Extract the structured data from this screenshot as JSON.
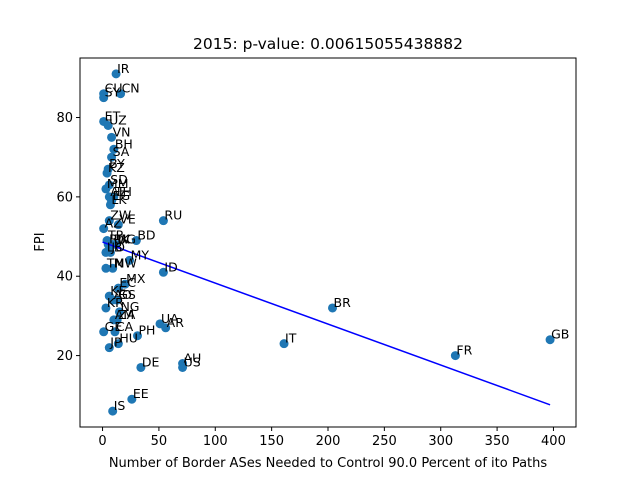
{
  "chart_data": {
    "type": "scatter",
    "title": "2015: p-value: 0.00615055438882",
    "xlabel": "Number of Border ASes Needed to Control 90.0 Percent of ito Paths",
    "ylabel": "FPI",
    "xlim": [
      -20,
      420
    ],
    "ylim": [
      2,
      95
    ],
    "xticks": [
      0,
      50,
      100,
      150,
      200,
      250,
      300,
      350,
      400
    ],
    "yticks": [
      20,
      40,
      60,
      80
    ],
    "grid": false,
    "point_color": "#1f77b4",
    "line_color": "#0000ff",
    "regression_line": {
      "x": [
        0,
        397
      ],
      "y": [
        48.6,
        7.6
      ]
    },
    "points": [
      {
        "label": "IR",
        "x": 12,
        "y": 91
      },
      {
        "label": "CU",
        "x": 1,
        "y": 86
      },
      {
        "label": "SY",
        "x": 1,
        "y": 85
      },
      {
        "label": "CN",
        "x": 16,
        "y": 86
      },
      {
        "label": "ET",
        "x": 1,
        "y": 79
      },
      {
        "label": "UZ",
        "x": 5,
        "y": 78
      },
      {
        "label": "VN",
        "x": 8,
        "y": 75
      },
      {
        "label": "BH",
        "x": 10,
        "y": 72
      },
      {
        "label": "SA",
        "x": 8,
        "y": 70
      },
      {
        "label": "BY",
        "x": 5,
        "y": 67
      },
      {
        "label": "KZ",
        "x": 4,
        "y": 66
      },
      {
        "label": "SD",
        "x": 6,
        "y": 63
      },
      {
        "label": "MM",
        "x": 3,
        "y": 62
      },
      {
        "label": "AE",
        "x": 6,
        "y": 60
      },
      {
        "label": "TH",
        "x": 10,
        "y": 60
      },
      {
        "label": "EG",
        "x": 8,
        "y": 59
      },
      {
        "label": "LK",
        "x": 7,
        "y": 58
      },
      {
        "label": "RU",
        "x": 54,
        "y": 54
      },
      {
        "label": "ZW",
        "x": 6,
        "y": 54
      },
      {
        "label": "VE",
        "x": 14,
        "y": 53
      },
      {
        "label": "AZ",
        "x": 1,
        "y": 52
      },
      {
        "label": "TR",
        "x": 4,
        "y": 49
      },
      {
        "label": "BD",
        "x": 30,
        "y": 49
      },
      {
        "label": "RW",
        "x": 5,
        "y": 48
      },
      {
        "label": "PK",
        "x": 9,
        "y": 48
      },
      {
        "label": "UG",
        "x": 12,
        "y": 48
      },
      {
        "label": "LB",
        "x": 3,
        "y": 46
      },
      {
        "label": "JO",
        "x": 7,
        "y": 46
      },
      {
        "label": "MY",
        "x": 24,
        "y": 44
      },
      {
        "label": "TN",
        "x": 3,
        "y": 42
      },
      {
        "label": "MW",
        "x": 9,
        "y": 42
      },
      {
        "label": "ID",
        "x": 54,
        "y": 41
      },
      {
        "label": "MX",
        "x": 20,
        "y": 38
      },
      {
        "label": "EC",
        "x": 14,
        "y": 37
      },
      {
        "label": "KE",
        "x": 6,
        "y": 35
      },
      {
        "label": "AO",
        "x": 9,
        "y": 34
      },
      {
        "label": "GS",
        "x": 13,
        "y": 34
      },
      {
        "label": "KR",
        "x": 3,
        "y": 32
      },
      {
        "label": "NG",
        "x": 15,
        "y": 31
      },
      {
        "label": "AM",
        "x": 10,
        "y": 29
      },
      {
        "label": "ZA",
        "x": 13,
        "y": 29
      },
      {
        "label": "UA",
        "x": 51,
        "y": 28
      },
      {
        "label": "AR",
        "x": 56,
        "y": 27
      },
      {
        "label": "GE",
        "x": 1,
        "y": 26
      },
      {
        "label": "CA",
        "x": 11,
        "y": 26
      },
      {
        "label": "PH",
        "x": 31,
        "y": 25
      },
      {
        "label": "JP",
        "x": 6,
        "y": 22
      },
      {
        "label": "HU",
        "x": 14,
        "y": 23
      },
      {
        "label": "IT",
        "x": 161,
        "y": 23
      },
      {
        "label": "BR",
        "x": 204,
        "y": 32
      },
      {
        "label": "GB",
        "x": 397,
        "y": 24
      },
      {
        "label": "FR",
        "x": 313,
        "y": 20
      },
      {
        "label": "AU",
        "x": 71,
        "y": 18
      },
      {
        "label": "DE",
        "x": 34,
        "y": 17
      },
      {
        "label": "US",
        "x": 71,
        "y": 17
      },
      {
        "label": "EE",
        "x": 26,
        "y": 9
      },
      {
        "label": "IS",
        "x": 9,
        "y": 6
      }
    ]
  }
}
